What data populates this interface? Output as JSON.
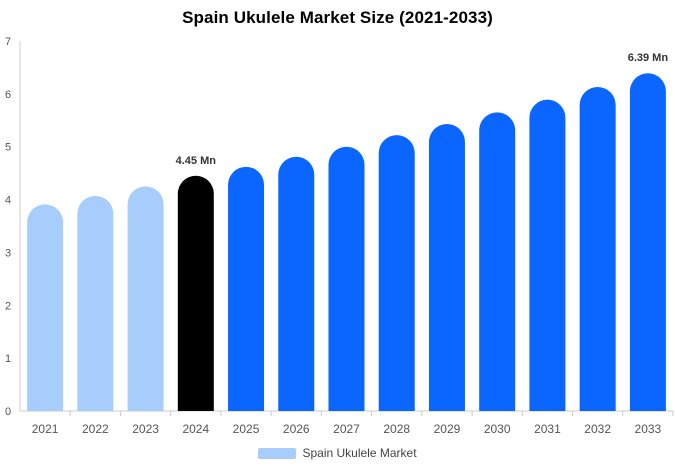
{
  "chart_data": {
    "type": "bar",
    "title": "Spain Ukulele Market Size (2021-2033)",
    "xlabel": "",
    "ylabel": "",
    "categories": [
      "2021",
      "2022",
      "2023",
      "2024",
      "2025",
      "2026",
      "2027",
      "2028",
      "2029",
      "2030",
      "2031",
      "2032",
      "2033"
    ],
    "series": [
      {
        "name": "Spain Ukulele Market",
        "values": [
          3.91,
          4.07,
          4.25,
          4.45,
          4.62,
          4.81,
          5.0,
          5.22,
          5.43,
          5.65,
          5.89,
          6.13,
          6.39
        ]
      }
    ],
    "ylim": [
      0,
      7
    ],
    "yticks": [
      "0",
      "1",
      "2",
      "3",
      "4",
      "5",
      "6",
      "7"
    ],
    "data_labels": [
      {
        "category": "2024",
        "text": "4.45 Mn"
      },
      {
        "category": "2033",
        "text": "6.39 Mn"
      }
    ],
    "grid": false,
    "legend_position": "bottom",
    "colors": {
      "historical": "#a6cdfc",
      "current": "#000000",
      "forecast": "#0a66ff",
      "axis": "#cccccc",
      "tick_text": "#555555"
    },
    "bar_color_groups": [
      "historical",
      "historical",
      "historical",
      "current",
      "forecast",
      "forecast",
      "forecast",
      "forecast",
      "forecast",
      "forecast",
      "forecast",
      "forecast",
      "forecast"
    ]
  }
}
